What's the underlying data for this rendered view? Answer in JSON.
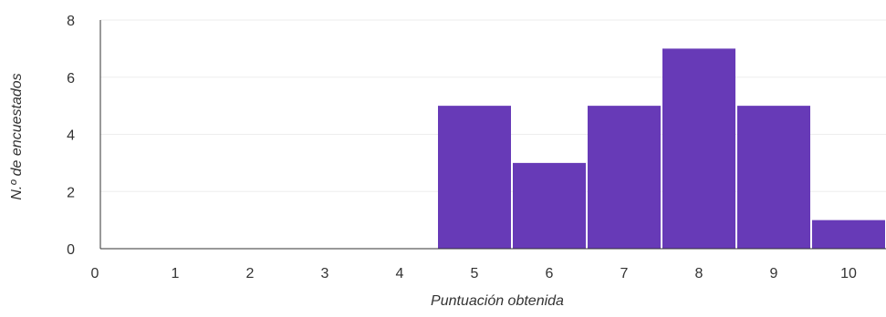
{
  "chart_data": {
    "type": "bar",
    "xlabel": "Puntuación obtenida",
    "ylabel": "N.º de encuestados",
    "categories": [
      "0",
      "1",
      "2",
      "3",
      "4",
      "5",
      "6",
      "7",
      "8",
      "9",
      "10"
    ],
    "values": [
      0,
      0,
      0,
      0,
      0,
      5,
      3,
      5,
      7,
      5,
      1
    ],
    "yticks": [
      "0",
      "2",
      "4",
      "6",
      "8"
    ],
    "ylim": [
      0,
      8
    ],
    "grid": true,
    "legend": "none",
    "colors": {
      "bar": "#673ab7",
      "grid": "#eeeeee",
      "axis": "#333333",
      "text": "#333333"
    }
  }
}
